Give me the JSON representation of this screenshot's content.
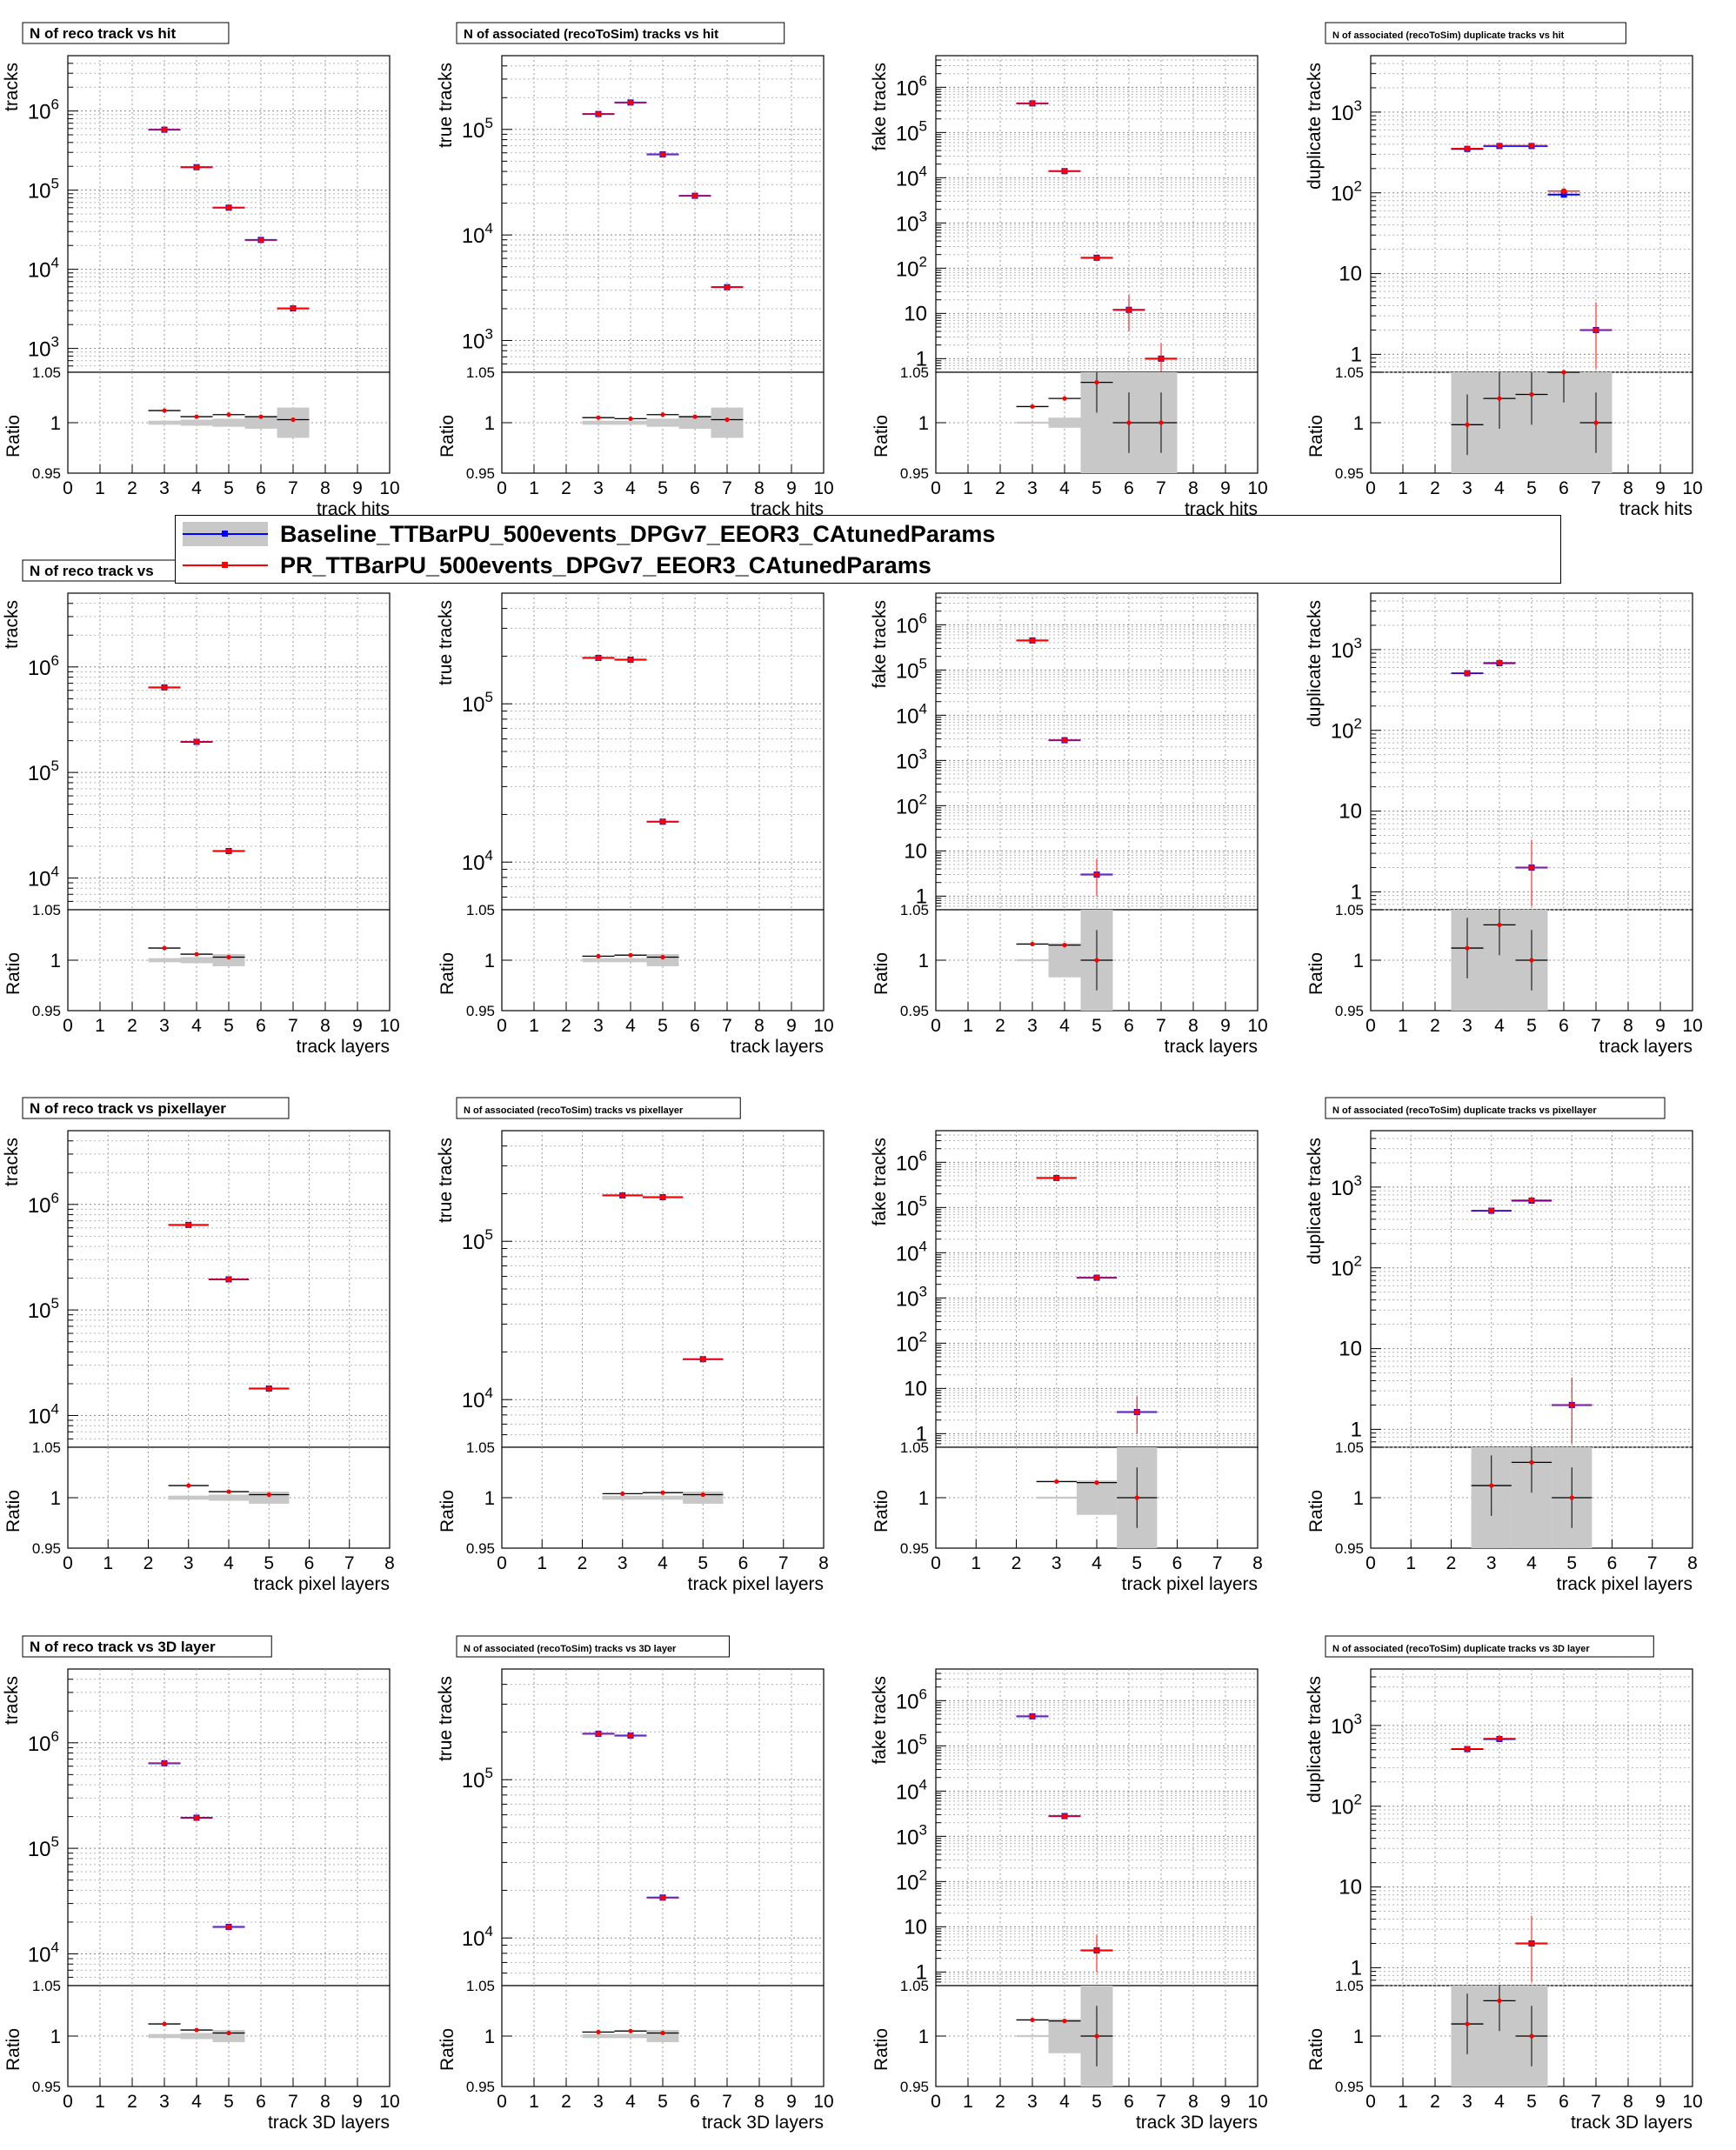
{
  "legend": {
    "baseline": "Baseline_TTBarPU_500events_DPGv7_EEOR3_CAtunedParams",
    "pr": "PR_TTBarPU_500events_DPGv7_EEOR3_CAtunedParams",
    "baseline_color": "#0000ff",
    "pr_color": "#ff0000",
    "band_color": "#c8c8c8"
  },
  "ratio_ylabel": "Ratio",
  "ratio_ylim": [
    0.95,
    1.05
  ],
  "chart_data": [
    {
      "type": "scatter",
      "title": "N of reco track vs hit",
      "xlabel": "track hits",
      "ylabel": "tracks",
      "xlim": [
        0,
        10
      ],
      "ylim": [
        500,
        5000000
      ],
      "x": [
        3,
        4,
        5,
        6,
        7
      ],
      "series": [
        {
          "name": "Baseline",
          "values": [
            580000,
            195000,
            60000,
            23500,
            3200
          ]
        },
        {
          "name": "PR",
          "values": [
            580000,
            195000,
            60000,
            23500,
            3200
          ]
        }
      ],
      "ratio": [
        1.012,
        1.006,
        1.008,
        1.006,
        1.003
      ],
      "band": [
        0.002,
        0.003,
        0.004,
        0.006,
        0.015
      ]
    },
    {
      "type": "scatter",
      "title": "N of associated (recoToSim) tracks vs hit",
      "xlabel": "track hits",
      "ylabel": "true tracks",
      "xlim": [
        0,
        10
      ],
      "ylim": [
        500,
        500000
      ],
      "x": [
        3,
        4,
        5,
        6,
        7
      ],
      "series": [
        {
          "name": "Baseline",
          "values": [
            140000,
            180000,
            58000,
            23500,
            3200
          ]
        },
        {
          "name": "PR",
          "values": [
            140000,
            180000,
            58000,
            23500,
            3200
          ]
        }
      ],
      "ratio": [
        1.005,
        1.004,
        1.008,
        1.006,
        1.003
      ],
      "band": [
        0.002,
        0.002,
        0.004,
        0.006,
        0.015
      ]
    },
    {
      "type": "scatter",
      "title": "",
      "xlabel": "track hits",
      "ylabel": "fake tracks",
      "xlim": [
        0,
        10
      ],
      "ylim": [
        0.5,
        5000000
      ],
      "x": [
        3,
        4,
        5,
        6,
        7
      ],
      "series": [
        {
          "name": "Baseline",
          "values": [
            440000,
            14000,
            170,
            12,
            1
          ]
        },
        {
          "name": "PR",
          "values": [
            440000,
            14000,
            170,
            12,
            1
          ]
        }
      ],
      "ratio": [
        1.016,
        1.024,
        1.04,
        1.0,
        1.0
      ],
      "band": [
        0.001,
        0.005,
        0.06,
        0.1,
        0.1
      ]
    },
    {
      "type": "scatter",
      "title": "N of associated (recoToSim) duplicate tracks vs hit",
      "xlabel": "track hits",
      "ylabel": "duplicate tracks",
      "xlim": [
        0,
        10
      ],
      "ylim": [
        0.6,
        5000
      ],
      "x": [
        3,
        4,
        5,
        6,
        7
      ],
      "series": [
        {
          "name": "Baseline",
          "values": [
            350,
            380,
            380,
            95,
            2
          ]
        },
        {
          "name": "PR",
          "values": [
            355,
            385,
            385,
            105,
            2
          ]
        }
      ],
      "ratio": [
        0.998,
        1.024,
        1.028,
        1.05,
        1.0
      ],
      "band": [
        0.05,
        0.05,
        0.05,
        0.05,
        0.05
      ]
    },
    {
      "type": "scatter",
      "title": "N of reco track vs",
      "xlabel": "track layers",
      "ylabel": "tracks",
      "xlim": [
        0,
        10
      ],
      "ylim": [
        5000,
        5000000
      ],
      "x": [
        3,
        4,
        5
      ],
      "series": [
        {
          "name": "Baseline",
          "values": [
            640000,
            195000,
            18000
          ]
        },
        {
          "name": "PR",
          "values": [
            640000,
            195000,
            18000
          ]
        }
      ],
      "ratio": [
        1.012,
        1.006,
        1.003
      ],
      "band": [
        0.002,
        0.003,
        0.006
      ]
    },
    {
      "type": "scatter",
      "title": "",
      "xlabel": "track layers",
      "ylabel": "true tracks",
      "xlim": [
        0,
        10
      ],
      "ylim": [
        5000,
        500000
      ],
      "x": [
        3,
        4,
        5
      ],
      "series": [
        {
          "name": "Baseline",
          "values": [
            195000,
            190000,
            18000
          ]
        },
        {
          "name": "PR",
          "values": [
            195000,
            190000,
            18000
          ]
        }
      ],
      "ratio": [
        1.004,
        1.005,
        1.003
      ],
      "band": [
        0.002,
        0.002,
        0.006
      ]
    },
    {
      "type": "scatter",
      "title": "",
      "xlabel": "track layers",
      "ylabel": "fake tracks",
      "xlim": [
        0,
        10
      ],
      "ylim": [
        0.5,
        5000000
      ],
      "x": [
        3,
        4,
        5
      ],
      "series": [
        {
          "name": "Baseline",
          "values": [
            450000,
            2800,
            3
          ]
        },
        {
          "name": "PR",
          "values": [
            450000,
            2800,
            3
          ]
        }
      ],
      "ratio": [
        1.016,
        1.015,
        1.0
      ],
      "band": [
        0.001,
        0.017,
        0.1
      ]
    },
    {
      "type": "scatter",
      "title": "",
      "xlabel": "track layers",
      "ylabel": "duplicate tracks",
      "xlim": [
        0,
        10
      ],
      "ylim": [
        0.6,
        5000
      ],
      "x": [
        3,
        4,
        5
      ],
      "series": [
        {
          "name": "Baseline",
          "values": [
            510,
            680,
            2
          ]
        },
        {
          "name": "PR",
          "values": [
            515,
            690,
            2
          ]
        }
      ],
      "ratio": [
        1.012,
        1.035,
        1.0
      ],
      "band": [
        0.05,
        0.05,
        0.05
      ]
    },
    {
      "type": "scatter",
      "title": "N of reco track vs pixellayer",
      "xlabel": "track pixel layers",
      "ylabel": "tracks",
      "xlim": [
        0,
        8
      ],
      "ylim": [
        5000,
        5000000
      ],
      "x": [
        3,
        4,
        5
      ],
      "series": [
        {
          "name": "Baseline",
          "values": [
            640000,
            195000,
            18000
          ]
        },
        {
          "name": "PR",
          "values": [
            640000,
            195000,
            18000
          ]
        }
      ],
      "ratio": [
        1.012,
        1.006,
        1.003
      ],
      "band": [
        0.002,
        0.003,
        0.006
      ]
    },
    {
      "type": "scatter",
      "title": "N of associated (recoToSim) tracks vs pixellayer",
      "xlabel": "track pixel layers",
      "ylabel": "true tracks",
      "xlim": [
        0,
        8
      ],
      "ylim": [
        5000,
        500000
      ],
      "x": [
        3,
        4,
        5
      ],
      "series": [
        {
          "name": "Baseline",
          "values": [
            195000,
            190000,
            18000
          ]
        },
        {
          "name": "PR",
          "values": [
            195000,
            190000,
            18000
          ]
        }
      ],
      "ratio": [
        1.004,
        1.005,
        1.003
      ],
      "band": [
        0.002,
        0.002,
        0.006
      ]
    },
    {
      "type": "scatter",
      "title": "",
      "xlabel": "track pixel layers",
      "ylabel": "fake tracks",
      "xlim": [
        0,
        8
      ],
      "ylim": [
        0.5,
        5000000
      ],
      "x": [
        3,
        4,
        5
      ],
      "series": [
        {
          "name": "Baseline",
          "values": [
            450000,
            2800,
            3
          ]
        },
        {
          "name": "PR",
          "values": [
            450000,
            2800,
            3
          ]
        }
      ],
      "ratio": [
        1.016,
        1.015,
        1.0
      ],
      "band": [
        0.001,
        0.017,
        0.1
      ]
    },
    {
      "type": "scatter",
      "title": "N of associated (recoToSim) duplicate tracks vs pixellayer",
      "xlabel": "track pixel layers",
      "ylabel": "duplicate tracks",
      "xlim": [
        0,
        8
      ],
      "ylim": [
        0.6,
        5000
      ],
      "x": [
        3,
        4,
        5
      ],
      "series": [
        {
          "name": "Baseline",
          "values": [
            510,
            680,
            2
          ]
        },
        {
          "name": "PR",
          "values": [
            515,
            690,
            2
          ]
        }
      ],
      "ratio": [
        1.012,
        1.035,
        1.0
      ],
      "band": [
        0.05,
        0.05,
        0.05
      ]
    },
    {
      "type": "scatter",
      "title": "N of reco track vs 3D layer",
      "xlabel": "track 3D layers",
      "ylabel": "tracks",
      "xlim": [
        0,
        10
      ],
      "ylim": [
        5000,
        5000000
      ],
      "x": [
        3,
        4,
        5
      ],
      "series": [
        {
          "name": "Baseline",
          "values": [
            640000,
            195000,
            18000
          ]
        },
        {
          "name": "PR",
          "values": [
            640000,
            195000,
            18000
          ]
        }
      ],
      "ratio": [
        1.012,
        1.006,
        1.003
      ],
      "band": [
        0.002,
        0.003,
        0.006
      ]
    },
    {
      "type": "scatter",
      "title": "N of associated (recoToSim) tracks vs 3D layer",
      "xlabel": "track 3D layers",
      "ylabel": "true tracks",
      "xlim": [
        0,
        10
      ],
      "ylim": [
        5000,
        500000
      ],
      "x": [
        3,
        4,
        5
      ],
      "series": [
        {
          "name": "Baseline",
          "values": [
            195000,
            190000,
            18000
          ]
        },
        {
          "name": "PR",
          "values": [
            195000,
            190000,
            18000
          ]
        }
      ],
      "ratio": [
        1.004,
        1.005,
        1.003
      ],
      "band": [
        0.002,
        0.002,
        0.006
      ]
    },
    {
      "type": "scatter",
      "title": "",
      "xlabel": "track 3D layers",
      "ylabel": "fake tracks",
      "xlim": [
        0,
        10
      ],
      "ylim": [
        0.5,
        5000000
      ],
      "x": [
        3,
        4,
        5
      ],
      "series": [
        {
          "name": "Baseline",
          "values": [
            450000,
            2800,
            3
          ]
        },
        {
          "name": "PR",
          "values": [
            450000,
            2800,
            3
          ]
        }
      ],
      "ratio": [
        1.016,
        1.015,
        1.0
      ],
      "band": [
        0.001,
        0.017,
        0.1
      ]
    },
    {
      "type": "scatter",
      "title": "N of associated (recoToSim) duplicate tracks vs 3D layer",
      "xlabel": "track 3D layers",
      "ylabel": "duplicate tracks",
      "xlim": [
        0,
        10
      ],
      "ylim": [
        0.6,
        5000
      ],
      "x": [
        3,
        4,
        5
      ],
      "series": [
        {
          "name": "Baseline",
          "values": [
            510,
            680,
            2
          ]
        },
        {
          "name": "PR",
          "values": [
            515,
            690,
            2
          ]
        }
      ],
      "ratio": [
        1.012,
        1.035,
        1.0
      ],
      "band": [
        0.05,
        0.05,
        0.05
      ]
    }
  ]
}
